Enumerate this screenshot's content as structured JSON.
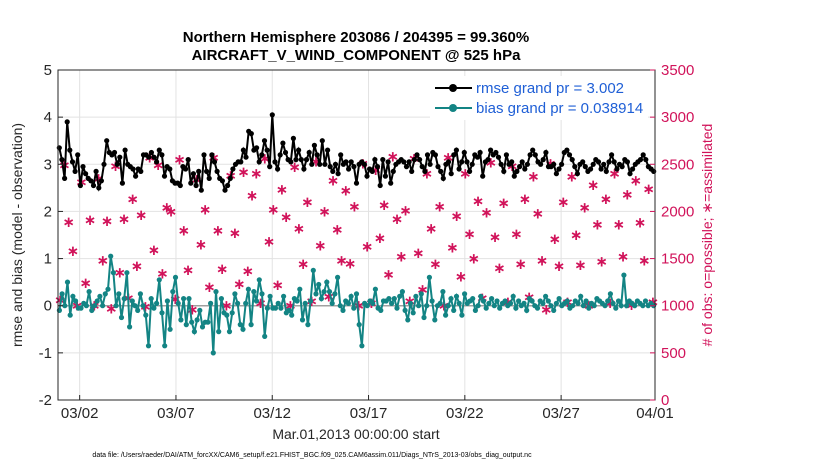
{
  "chart_data": {
    "type": "line",
    "title_line1": "Northern Hemisphere 203086 / 204395 = 99.360%",
    "title_line2": "AIRCRAFT_V_WIND_COMPONENT @ 525 hPa",
    "xlabel": "Mar.01,2013 00:00:00 start",
    "ylabel_left": "rmse and bias (model - observation)",
    "ylabel_right": "# of obs: o=possible; ∗=assimilated",
    "xlim": [
      0.5,
      31.5
    ],
    "ylim_left": [
      -2,
      5
    ],
    "ylim_right": [
      0,
      3500
    ],
    "x_tick_values": [
      1.625,
      6.625,
      11.625,
      16.625,
      21.625,
      26.625,
      31.625
    ],
    "x_tick_labels": [
      "03/02",
      "03/07",
      "03/12",
      "03/17",
      "03/22",
      "03/27",
      "04/01"
    ],
    "y_left_ticks": [
      "5",
      "4",
      "3",
      "2",
      "1",
      "0",
      "-1",
      "-2"
    ],
    "y_left_tick_values": [
      5,
      4,
      3,
      2,
      1,
      0,
      -1,
      -2
    ],
    "y_right_ticks": [
      "3500",
      "3000",
      "2500",
      "2000",
      "1500",
      "1000",
      "500",
      "0"
    ],
    "y_right_tick_values": [
      3500,
      3000,
      2500,
      2000,
      1500,
      1000,
      500,
      0
    ],
    "legend": [
      {
        "label": "rmse grand pr = 3.002",
        "color": "#000000"
      },
      {
        "label": "bias grand pr = 0.038914",
        "color": "#138484"
      }
    ],
    "series": [
      {
        "name": "rmse",
        "color": "#000000",
        "values": [
          3.35,
          3.1,
          2.7,
          3.9,
          3.3,
          3.05,
          2.85,
          3.2,
          2.55,
          2.95,
          2.8,
          2.7,
          2.65,
          2.55,
          2.85,
          2.5,
          2.65,
          3.0,
          3.5,
          3.25,
          3.2,
          3.25,
          3.0,
          3.15,
          2.6,
          3.3,
          3.0,
          2.95,
          2.9,
          2.75,
          2.9,
          2.85,
          3.2,
          3.2,
          3.15,
          3.25,
          3.15,
          3.05,
          3.3,
          3.2,
          2.75,
          2.95,
          2.9,
          2.65,
          2.6,
          2.6,
          2.55,
          2.95,
          2.9,
          3.1,
          2.6,
          2.8,
          2.55,
          2.85,
          2.45,
          3.2,
          2.85,
          2.7,
          3.2,
          3.05,
          2.85,
          2.7,
          2.65,
          2.45,
          2.55,
          2.7,
          2.9,
          3.0,
          3.05,
          3.05,
          3.3,
          3.15,
          3.7,
          3.65,
          3.3,
          3.35,
          3.05,
          3.2,
          3.5,
          3.3,
          2.95,
          4.05,
          3.05,
          2.9,
          3.2,
          3.45,
          3.25,
          3.1,
          3.05,
          3.55,
          3.1,
          3.3,
          3.1,
          2.9,
          3.1,
          3.25,
          3.0,
          3.4,
          3.2,
          3.0,
          3.5,
          3.0,
          3.3,
          2.95,
          2.85,
          3.0,
          2.8,
          3.2,
          3.0,
          3.05,
          2.9,
          3.05,
          2.95,
          2.6,
          3.0,
          3.05,
          3.0,
          2.75,
          2.9,
          2.85,
          3.1,
          2.95,
          2.55,
          3.1,
          2.75,
          3.05,
          2.6,
          2.85,
          3.0,
          3.05,
          3.1,
          3.05,
          2.95,
          3.05,
          2.85,
          3.1,
          3.2,
          3.1,
          2.95,
          2.85,
          3.2,
          3.0,
          3.25,
          3.2,
          2.95,
          2.85,
          2.7,
          3.0,
          3.05,
          2.8,
          3.2,
          3.3,
          2.9,
          3.05,
          3.25,
          3.05,
          2.85,
          3.0,
          3.2,
          3.15,
          3.25,
          2.75,
          3.05,
          3.1,
          3.3,
          3.2,
          3.25,
          3.15,
          3.0,
          2.85,
          3.2,
          3.0,
          3.05,
          2.75,
          2.85,
          2.95,
          3.05,
          2.9,
          3.0,
          3.2,
          3.3,
          3.2,
          3.05,
          3.0,
          3.1,
          3.25,
          2.95,
          2.95,
          3.0,
          2.8,
          2.9,
          3.0,
          3.25,
          3.3,
          3.2,
          3.1,
          2.95,
          2.8,
          3.0,
          3.05,
          2.95,
          2.85,
          2.9,
          3.0,
          3.1,
          3.05,
          2.9,
          3.0,
          2.85,
          3.05,
          3.2,
          3.05,
          2.9,
          3.0,
          2.95,
          3.1,
          3.05,
          2.8,
          2.9,
          3.0,
          3.05,
          3.1,
          3.2,
          3.1,
          2.95,
          2.9,
          2.85
        ]
      },
      {
        "name": "bias",
        "color": "#138484",
        "values": [
          -0.1,
          0.25,
          0.0,
          0.5,
          -0.2,
          0.2,
          0.1,
          -0.05,
          -0.05,
          0.05,
          0.0,
          0.3,
          -0.1,
          0.0,
          0.1,
          0.2,
          0.0,
          0.25,
          0.35,
          1.05,
          0.7,
          0.0,
          0.25,
          -0.25,
          0.15,
          0.7,
          -0.45,
          0.1,
          0.0,
          -0.1,
          0.25,
          0.0,
          -0.2,
          -0.85,
          0.15,
          -0.05,
          0.05,
          0.55,
          -0.15,
          -0.85,
          0.1,
          -0.5,
          0.3,
          0.6,
          0.05,
          -0.3,
          0.15,
          -0.4,
          0.15,
          -0.35,
          -0.55,
          -0.3,
          -0.1,
          -0.45,
          -0.35,
          -0.35,
          0.05,
          -1.0,
          0.3,
          -0.55,
          0.15,
          -0.15,
          -0.2,
          -0.55,
          -0.15,
          0.25,
          0.05,
          -0.4,
          -0.5,
          0.05,
          0.35,
          -0.4,
          0.3,
          0.1,
          0.55,
          0.25,
          -0.65,
          -0.05,
          0.2,
          -0.05,
          -0.05,
          0.05,
          -0.05,
          0.2,
          -0.15,
          -0.1,
          -0.2,
          0.15,
          0.1,
          0.35,
          -0.3,
          0.05,
          -0.4,
          0.1,
          0.75,
          0.25,
          0.45,
          0.15,
          0.3,
          0.5,
          0.3,
          0.05,
          0.25,
          0.6,
          0.0,
          -0.1,
          0.1,
          0.05,
          0.2,
          -0.05,
          0.25,
          -0.4,
          -0.85,
          0.05,
          0.0,
          0.1,
          0.05,
          0.35,
          -0.05,
          -0.1,
          0.1,
          0.1,
          0.15,
          0.05,
          0.15,
          -0.05,
          0.2,
          0.3,
          -0.1,
          -0.3,
          0.05,
          -0.15,
          0.2,
          0.0,
          0.25,
          -0.25,
          0.0,
          0.6,
          0.1,
          -0.3,
          0.0,
          0.05,
          0.3,
          -0.2,
          0.0,
          0.15,
          -0.1,
          0.2,
          0.05,
          -0.2,
          0.25,
          0.05,
          0.1,
          0.15,
          -0.1,
          0.0,
          0.2,
          0.1,
          -0.05,
          0.05,
          0.15,
          0.0,
          0.1,
          -0.05,
          0.05,
          0.1,
          0.0,
          0.05,
          0.2,
          -0.05,
          0.1,
          0.0,
          0.05,
          -0.1,
          0.15,
          0.1,
          0.0,
          -0.05,
          0.1,
          0.05,
          0.2,
          0.1,
          0.0,
          -0.1,
          0.05,
          0.15,
          0.0,
          0.05,
          0.1,
          -0.05,
          0.0,
          0.1,
          0.05,
          0.2,
          0.0,
          0.1,
          -0.05,
          0.05,
          0.0,
          0.15,
          0.1,
          0.05,
          0.0,
          0.1,
          0.25,
          0.05,
          -0.05,
          0.1,
          0.0,
          0.65,
          0.0,
          0.1,
          0.05,
          0.0,
          0.1,
          0.05,
          0.0,
          0.1,
          0.0,
          0.05,
          0.0
        ]
      },
      {
        "name": "obs count (o=possible, ∗=assimilated)",
        "color": "#d1135a",
        "values": [
          1060,
          2490,
          1890,
          1580,
          1000,
          2310,
          1240,
          1910,
          1000,
          2350,
          1480,
          1900,
          970,
          2480,
          1350,
          1920,
          1080,
          2130,
          1420,
          1960,
          990,
          2570,
          1590,
          2490,
          1340,
          2040,
          2000,
          1070,
          2550,
          1800,
          1380,
          960,
          2340,
          1650,
          2020,
          1200,
          2570,
          1800,
          1390,
          1000,
          2380,
          1770,
          1230,
          2420,
          1370,
          2170,
          2400,
          1030,
          2560,
          1680,
          2020,
          1220,
          2230,
          1940,
          1000,
          2470,
          1820,
          1440,
          2100,
          1050,
          2530,
          1640,
          2000,
          1100,
          2330,
          1810,
          1480,
          2220,
          1450,
          2050,
          1000,
          2510,
          1630,
          1030,
          2440,
          1720,
          2070,
          1330,
          2580,
          1920,
          1520,
          2010,
          1050,
          2560,
          1560,
          1170,
          2400,
          1820,
          1440,
          2050,
          1000,
          2570,
          1620,
          1950,
          1310,
          2400,
          1760,
          1500,
          2110,
          1080,
          1990,
          2520,
          1730,
          1400,
          2090,
          1040,
          2480,
          1760,
          1440,
          2130,
          1090,
          2370,
          1980,
          1480,
          960,
          2510,
          1710,
          1420,
          2100,
          1040,
          2370,
          1750,
          1430,
          2040,
          1000,
          2280,
          1860,
          1470,
          2130,
          1030,
          2400,
          1860,
          1520,
          2180,
          1010,
          2330,
          1880,
          1480,
          2240,
          1040
        ]
      }
    ]
  },
  "footnote": "data file: /Users/raeder/DAI/ATM_forcXX/CAM6_setup/f.e21.FHIST_BGC.f09_025.CAM6assim.011/Diags_NTrS_2013-03/obs_diag_output.nc"
}
